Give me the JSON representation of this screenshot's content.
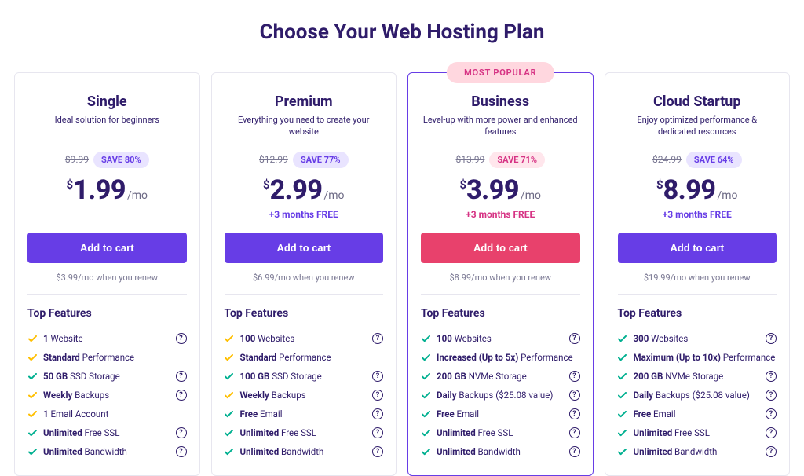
{
  "page_title": "Choose Your Web Hosting Plan",
  "currency_symbol": "$",
  "per_label": "/mo",
  "features_title": "Top Features",
  "popular_badge": "MOST POPULAR",
  "colors": {
    "brand_purple": "#673de6",
    "accent_pink": "#e8416c",
    "save_purple_bg": "#e9e4ff",
    "save_pink_bg": "#ffe6ec",
    "text_dark": "#2f1c6a",
    "text_muted": "#7a7893",
    "check_green": "#00b090",
    "check_yellow": "#ffbf00",
    "border": "#e7e6ef",
    "popular_bg": "#ffd7df",
    "popular_text": "#d63384"
  },
  "plans": [
    {
      "name": "Single",
      "tagline": "Ideal solution for beginners",
      "original_price": "$9.99",
      "save_label": "SAVE 80%",
      "save_variant": "purple",
      "price": "1.99",
      "bonus": "",
      "bonus_variant": "purple",
      "cta_label": "Add to cart",
      "cta_variant": "purple",
      "renew_text": "$3.99/mo when you renew",
      "featured": false,
      "features": [
        {
          "bold": "1",
          "rest": " Website",
          "check": "yellow",
          "info": true
        },
        {
          "bold": "Standard",
          "rest": " Performance",
          "check": "yellow",
          "info": false
        },
        {
          "bold": "50 GB",
          "rest": " SSD Storage",
          "check": "green",
          "info": true
        },
        {
          "bold": "Weekly",
          "rest": " Backups",
          "check": "yellow",
          "info": true
        },
        {
          "bold": "1",
          "rest": " Email Account",
          "check": "yellow",
          "info": false
        },
        {
          "bold": "Unlimited",
          "rest": " Free SSL",
          "check": "green",
          "info": true
        },
        {
          "bold": "Unlimited",
          "rest": " Bandwidth",
          "check": "green",
          "info": true
        }
      ]
    },
    {
      "name": "Premium",
      "tagline": "Everything you need to create your website",
      "original_price": "$12.99",
      "save_label": "SAVE 77%",
      "save_variant": "purple",
      "price": "2.99",
      "bonus": "+3 months FREE",
      "bonus_variant": "purple",
      "cta_label": "Add to cart",
      "cta_variant": "purple",
      "renew_text": "$6.99/mo when you renew",
      "featured": false,
      "features": [
        {
          "bold": "100",
          "rest": " Websites",
          "check": "yellow",
          "info": true
        },
        {
          "bold": "Standard",
          "rest": " Performance",
          "check": "yellow",
          "info": false
        },
        {
          "bold": "100 GB",
          "rest": " SSD Storage",
          "check": "green",
          "info": true
        },
        {
          "bold": "Weekly",
          "rest": " Backups",
          "check": "yellow",
          "info": true
        },
        {
          "bold": "Free",
          "rest": " Email",
          "check": "green",
          "info": true
        },
        {
          "bold": "Unlimited",
          "rest": " Free SSL",
          "check": "green",
          "info": true
        },
        {
          "bold": "Unlimited",
          "rest": " Bandwidth",
          "check": "green",
          "info": true
        }
      ]
    },
    {
      "name": "Business",
      "tagline": "Level-up with more power and enhanced features",
      "original_price": "$13.99",
      "save_label": "SAVE 71%",
      "save_variant": "pink",
      "price": "3.99",
      "bonus": "+3 months FREE",
      "bonus_variant": "pink",
      "cta_label": "Add to cart",
      "cta_variant": "pink",
      "renew_text": "$8.99/mo when you renew",
      "featured": true,
      "features": [
        {
          "bold": "100",
          "rest": " Websites",
          "check": "green",
          "info": true
        },
        {
          "bold": "Increased (Up to 5x)",
          "rest": " Performance",
          "check": "green",
          "info": false
        },
        {
          "bold": "200 GB",
          "rest": " NVMe Storage",
          "check": "green",
          "info": true
        },
        {
          "bold": "Daily",
          "rest": " Backups ($25.08 value)",
          "check": "green",
          "info": true
        },
        {
          "bold": "Free",
          "rest": " Email",
          "check": "green",
          "info": true
        },
        {
          "bold": "Unlimited",
          "rest": " Free SSL",
          "check": "green",
          "info": true
        },
        {
          "bold": "Unlimited",
          "rest": " Bandwidth",
          "check": "green",
          "info": true
        }
      ]
    },
    {
      "name": "Cloud Startup",
      "tagline": "Enjoy optimized performance & dedicated resources",
      "original_price": "$24.99",
      "save_label": "SAVE 64%",
      "save_variant": "purple",
      "price": "8.99",
      "bonus": "+3 months FREE",
      "bonus_variant": "purple",
      "cta_label": "Add to cart",
      "cta_variant": "purple",
      "renew_text": "$19.99/mo when you renew",
      "featured": false,
      "features": [
        {
          "bold": "300",
          "rest": " Websites",
          "check": "green",
          "info": true
        },
        {
          "bold": "Maximum (Up to 10x)",
          "rest": " Performance",
          "check": "green",
          "info": false
        },
        {
          "bold": "200 GB",
          "rest": " NVMe Storage",
          "check": "green",
          "info": true
        },
        {
          "bold": "Daily",
          "rest": " Backups ($25.08 value)",
          "check": "green",
          "info": true
        },
        {
          "bold": "Free",
          "rest": " Email",
          "check": "green",
          "info": true
        },
        {
          "bold": "Unlimited",
          "rest": " Free SSL",
          "check": "green",
          "info": true
        },
        {
          "bold": "Unlimited",
          "rest": " Bandwidth",
          "check": "green",
          "info": true
        }
      ]
    }
  ]
}
